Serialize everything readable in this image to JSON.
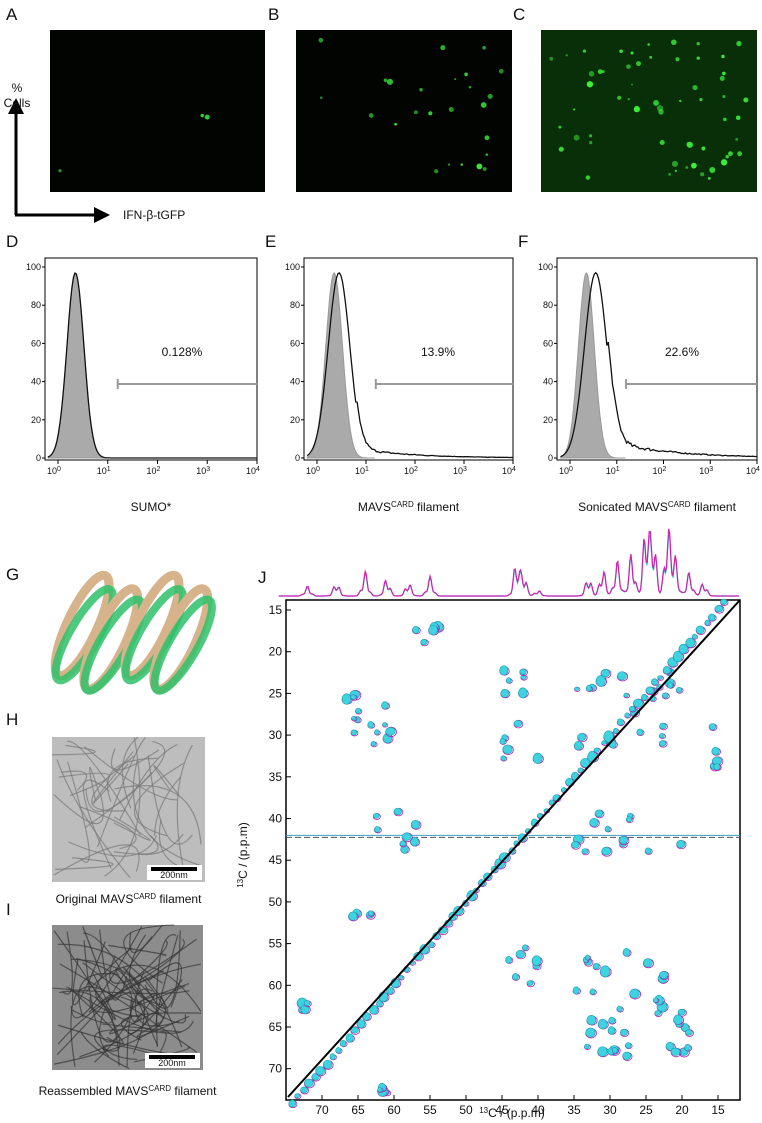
{
  "panel_labels": [
    "A",
    "B",
    "C",
    "D",
    "E",
    "F",
    "G",
    "H",
    "I",
    "J"
  ],
  "axis_schematic": {
    "y_label_1": "%",
    "y_label_2": "Cells",
    "x_label": "IFN-β-tGFP"
  },
  "histograms": [
    {
      "percent": "0.128%",
      "xlabel": {
        "pre": "SUMO*"
      }
    },
    {
      "percent": "13.9%",
      "xlabel": {
        "pre": "MAVS",
        "sup": "CARD",
        "post": " filament"
      }
    },
    {
      "percent": "22.6%",
      "xlabel": {
        "pre": "Sonicated MAVS",
        "sup": "CARD",
        "post": " filament"
      }
    }
  ],
  "histogram_yticks": [
    0,
    20,
    40,
    60,
    80,
    100
  ],
  "histogram_xticks": [
    {
      "base": "10",
      "exp": "0"
    },
    {
      "base": "10",
      "exp": "1"
    },
    {
      "base": "10",
      "exp": "2"
    },
    {
      "base": "10",
      "exp": "3"
    },
    {
      "base": "10",
      "exp": "4"
    }
  ],
  "micrographs": [
    {
      "scale": "200nm",
      "caption": {
        "pre": "Original MAVS",
        "sup": "CARD",
        "post": " filament"
      }
    },
    {
      "scale": "200nm",
      "caption": {
        "pre": "Reassembled MAVS",
        "sup": "CARD",
        "post": " filament"
      }
    }
  ],
  "nmr": {
    "xticks": [
      70,
      65,
      60,
      55,
      50,
      45,
      40,
      35,
      30,
      25,
      20,
      15
    ],
    "yticks": [
      15,
      20,
      25,
      30,
      35,
      40,
      45,
      50,
      55,
      60,
      65,
      70
    ],
    "xlabel": {
      "sup": "13",
      "post": "C / (p.p.m)"
    },
    "ylabel": {
      "sup": "13",
      "post": "C / (p.p.m)"
    }
  }
}
